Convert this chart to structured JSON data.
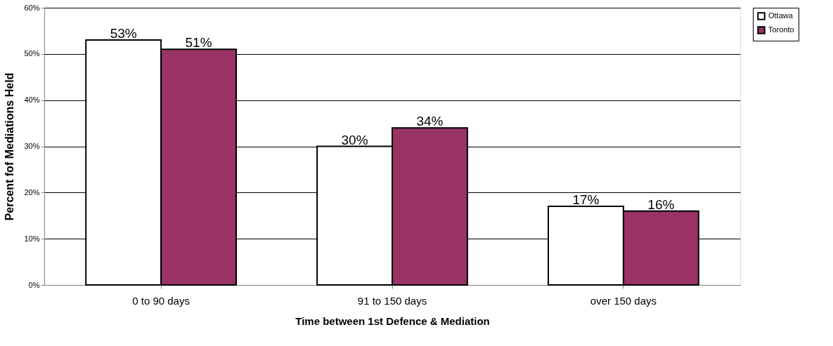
{
  "chart_data": {
    "type": "bar",
    "xlabel": "Time between 1st Defence & Mediation",
    "ylabel": "Percent fof Mediations Held",
    "categories": [
      "0 to 90 days",
      "91 to 150 days",
      "over 150 days"
    ],
    "series": [
      {
        "name": "Ottawa",
        "color": "#ffffff",
        "values": [
          53,
          30,
          17
        ],
        "value_labels": [
          "53%",
          "30%",
          "17%"
        ]
      },
      {
        "name": "Toronto",
        "color": "#993366",
        "values": [
          51,
          34,
          16
        ],
        "value_labels": [
          "51%",
          "34%",
          "16%"
        ]
      }
    ],
    "ylim": [
      0,
      60
    ],
    "yticks": [
      {
        "value": 0,
        "label": "0%"
      },
      {
        "value": 10,
        "label": "10%"
      },
      {
        "value": 20,
        "label": "20%"
      },
      {
        "value": 30,
        "label": "30%"
      },
      {
        "value": 40,
        "label": "40%"
      },
      {
        "value": 50,
        "label": "50%"
      },
      {
        "value": 60,
        "label": "60%"
      }
    ],
    "grid": "y",
    "legend": "right"
  }
}
